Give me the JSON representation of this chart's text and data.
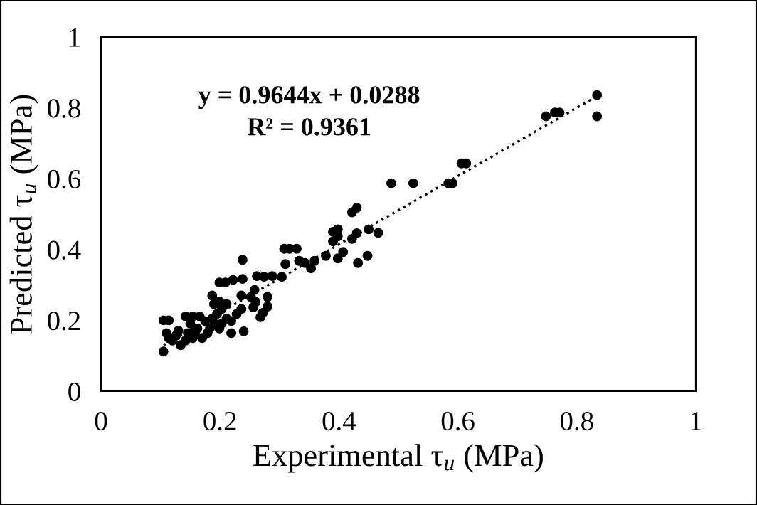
{
  "chart_data": {
    "type": "scatter",
    "xlabel": "Experimental τ$_{u}$ (MPa)",
    "ylabel": "Predicted τ$_{u}$ (MPa)",
    "xlim": [
      0,
      1
    ],
    "ylim": [
      0,
      1
    ],
    "xticks": [
      0,
      0.2,
      0.4,
      0.6,
      0.8,
      1
    ],
    "yticks": [
      0,
      0.2,
      0.4,
      0.6,
      0.8,
      1
    ],
    "grid": false,
    "legend": false,
    "marker": "circle",
    "annotations": [
      "y = 0.9644x + 0.0288",
      "R² = 0.9361"
    ],
    "series": [
      {
        "color": "#000000",
        "x": [
          0.834,
          0.834,
          0.748,
          0.763,
          0.771,
          0.488,
          0.525,
          0.584,
          0.591,
          0.606,
          0.614,
          0.422,
          0.43,
          0.398,
          0.39,
          0.398,
          0.45,
          0.466,
          0.43,
          0.422,
          0.39,
          0.407,
          0.398,
          0.378,
          0.432,
          0.448,
          0.308,
          0.329,
          0.317,
          0.31,
          0.333,
          0.343,
          0.353,
          0.359,
          0.304,
          0.288,
          0.274,
          0.262,
          0.238,
          0.238,
          0.222,
          0.209,
          0.199,
          0.258,
          0.252,
          0.26,
          0.28,
          0.28,
          0.272,
          0.268,
          0.256,
          0.236,
          0.24,
          0.219,
          0.236,
          0.187,
          0.19,
          0.105,
          0.114,
          0.105,
          0.11,
          0.12,
          0.114,
          0.134,
          0.142,
          0.146,
          0.142,
          0.154,
          0.166,
          0.15,
          0.162,
          0.175,
          0.179,
          0.154,
          0.17,
          0.187,
          0.195,
          0.203,
          0.211,
          0.203,
          0.219,
          0.199,
          0.211,
          0.228,
          0.183,
          0.13,
          0.126,
          0.158,
          0.199,
          0.191
        ],
        "values": [
          0.836,
          0.776,
          0.776,
          0.787,
          0.787,
          0.587,
          0.587,
          0.587,
          0.587,
          0.643,
          0.643,
          0.505,
          0.518,
          0.457,
          0.45,
          0.437,
          0.457,
          0.447,
          0.446,
          0.43,
          0.423,
          0.393,
          0.375,
          0.382,
          0.362,
          0.382,
          0.402,
          0.402,
          0.402,
          0.359,
          0.368,
          0.362,
          0.347,
          0.368,
          0.323,
          0.325,
          0.323,
          0.325,
          0.317,
          0.371,
          0.314,
          0.307,
          0.307,
          0.286,
          0.266,
          0.252,
          0.266,
          0.239,
          0.221,
          0.209,
          0.237,
          0.27,
          0.169,
          0.164,
          0.232,
          0.27,
          0.246,
          0.2,
          0.2,
          0.112,
          0.164,
          0.143,
          0.15,
          0.13,
          0.143,
          0.164,
          0.211,
          0.211,
          0.211,
          0.191,
          0.177,
          0.198,
          0.164,
          0.15,
          0.15,
          0.205,
          0.218,
          0.232,
          0.205,
          0.191,
          0.198,
          0.253,
          0.246,
          0.218,
          0.177,
          0.171,
          0.157,
          0.164,
          0.177,
          0.191
        ]
      },
      {
        "type": "line",
        "color": "#000000",
        "line_style": "dotted",
        "marker": "none",
        "x": [
          0.105,
          0.834
        ],
        "values": [
          0.13,
          0.833
        ]
      }
    ]
  }
}
